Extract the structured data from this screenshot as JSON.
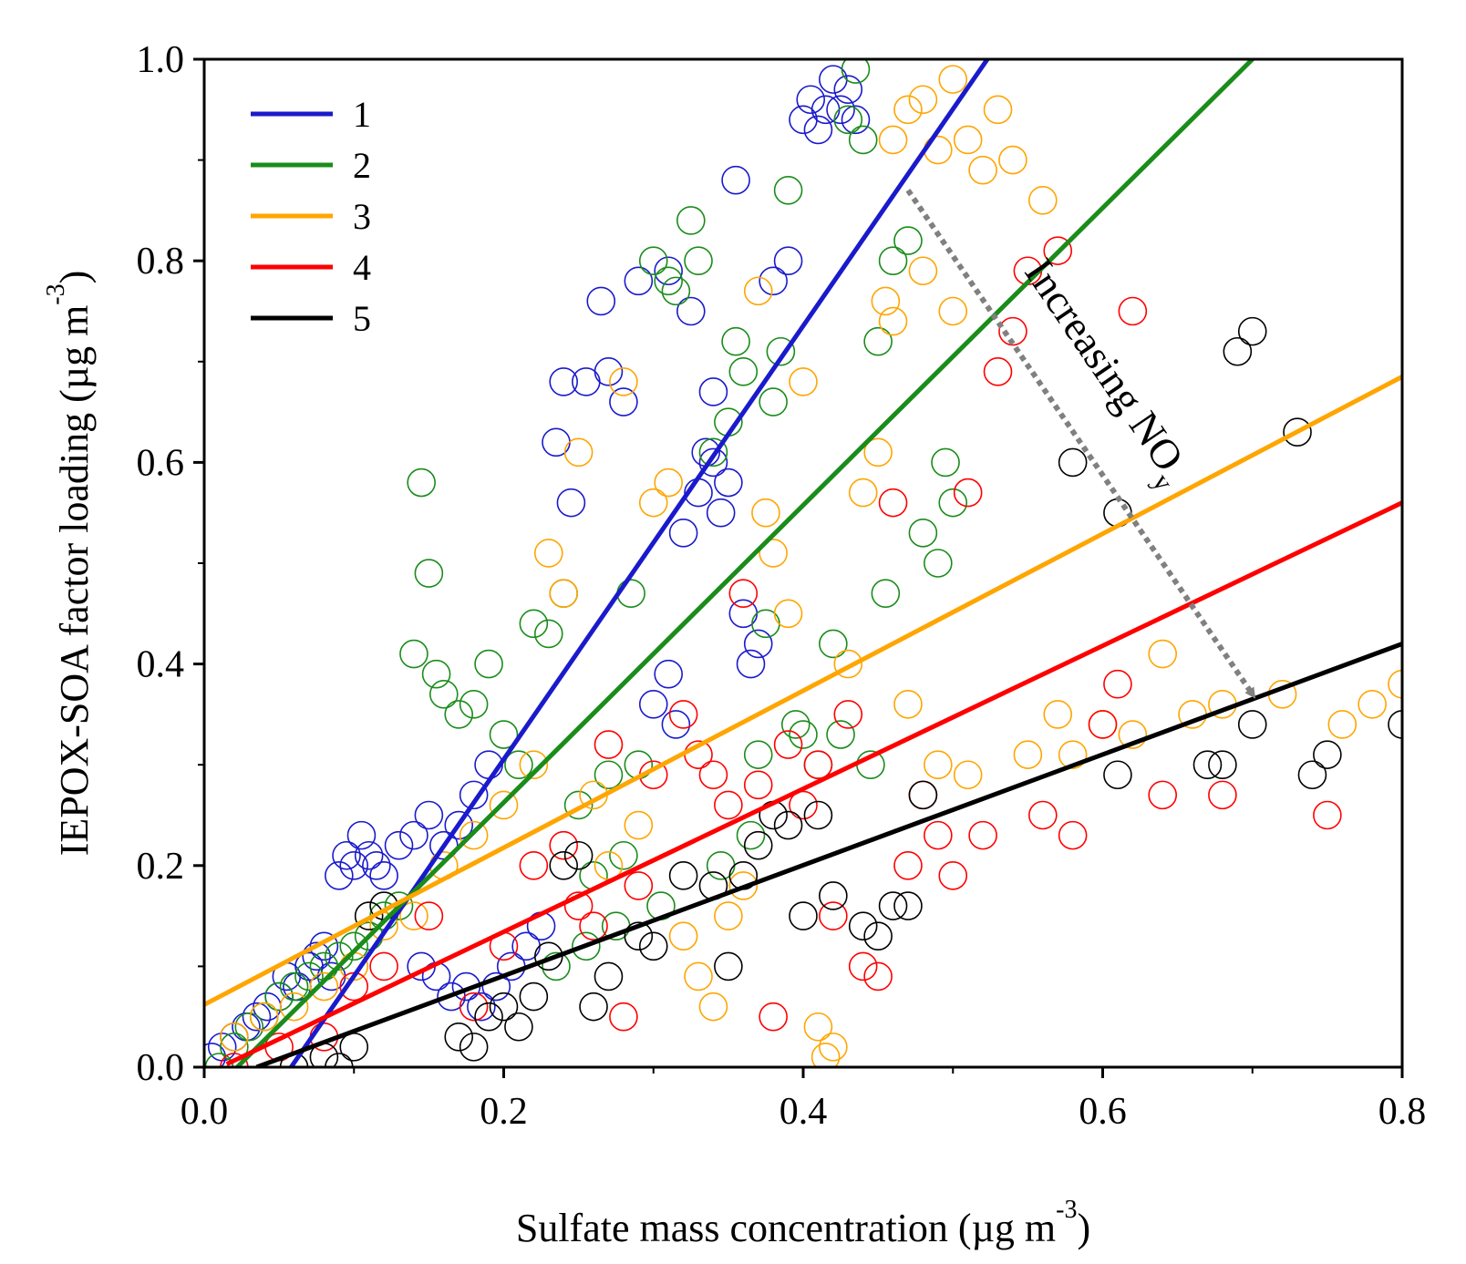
{
  "chart_data": {
    "type": "scatter",
    "xlabel": {
      "main": "Sulfate mass concentration (µg m",
      "sup": "-3",
      "close": ")"
    },
    "ylabel": {
      "main": "IEPOX-SOA factor loading (µg m",
      "sup": "-3",
      "close": ")"
    },
    "xlim": [
      0,
      0.8
    ],
    "ylim": [
      0,
      1.0
    ],
    "x_ticks": [
      "0.0",
      "0.2",
      "0.4",
      "0.6",
      "0.8"
    ],
    "y_ticks": [
      "0.0",
      "0.2",
      "0.4",
      "0.6",
      "0.8",
      "1.0"
    ],
    "grid": false,
    "legend_position": "top-left",
    "annotation": {
      "text": "Increasing NO",
      "sub": "y",
      "from": [
        0.47,
        0.87
      ],
      "to": [
        0.7,
        0.37
      ]
    },
    "series": [
      {
        "name": "1",
        "color": "#1a1acc",
        "fit_line": [
          [
            0.058,
            0.0
          ],
          [
            0.523,
            1.0
          ]
        ],
        "points": [
          [
            0.005,
            0.01
          ],
          [
            0.012,
            0.02
          ],
          [
            0.02,
            0.03
          ],
          [
            0.028,
            0.04
          ],
          [
            0.035,
            0.05
          ],
          [
            0.042,
            0.06
          ],
          [
            0.05,
            0.07
          ],
          [
            0.055,
            0.09
          ],
          [
            0.062,
            0.08
          ],
          [
            0.07,
            0.1
          ],
          [
            0.075,
            0.11
          ],
          [
            0.08,
            0.12
          ],
          [
            0.085,
            0.09
          ],
          [
            0.09,
            0.19
          ],
          [
            0.095,
            0.21
          ],
          [
            0.1,
            0.2
          ],
          [
            0.105,
            0.23
          ],
          [
            0.11,
            0.21
          ],
          [
            0.115,
            0.2
          ],
          [
            0.12,
            0.19
          ],
          [
            0.13,
            0.22
          ],
          [
            0.14,
            0.23
          ],
          [
            0.15,
            0.25
          ],
          [
            0.16,
            0.22
          ],
          [
            0.17,
            0.24
          ],
          [
            0.18,
            0.27
          ],
          [
            0.19,
            0.3
          ],
          [
            0.145,
            0.1
          ],
          [
            0.155,
            0.09
          ],
          [
            0.165,
            0.07
          ],
          [
            0.175,
            0.08
          ],
          [
            0.185,
            0.06
          ],
          [
            0.195,
            0.08
          ],
          [
            0.205,
            0.1
          ],
          [
            0.215,
            0.12
          ],
          [
            0.225,
            0.14
          ],
          [
            0.235,
            0.62
          ],
          [
            0.24,
            0.68
          ],
          [
            0.245,
            0.56
          ],
          [
            0.255,
            0.68
          ],
          [
            0.265,
            0.76
          ],
          [
            0.27,
            0.69
          ],
          [
            0.28,
            0.66
          ],
          [
            0.29,
            0.78
          ],
          [
            0.3,
            0.36
          ],
          [
            0.31,
            0.39
          ],
          [
            0.315,
            0.34
          ],
          [
            0.32,
            0.53
          ],
          [
            0.33,
            0.57
          ],
          [
            0.335,
            0.61
          ],
          [
            0.34,
            0.6
          ],
          [
            0.345,
            0.55
          ],
          [
            0.35,
            0.58
          ],
          [
            0.355,
            0.88
          ],
          [
            0.36,
            0.45
          ],
          [
            0.365,
            0.4
          ],
          [
            0.37,
            0.42
          ],
          [
            0.38,
            0.78
          ],
          [
            0.39,
            0.8
          ],
          [
            0.4,
            0.94
          ],
          [
            0.405,
            0.96
          ],
          [
            0.41,
            0.93
          ],
          [
            0.415,
            0.95
          ],
          [
            0.42,
            0.98
          ],
          [
            0.425,
            0.95
          ],
          [
            0.43,
            0.97
          ],
          [
            0.435,
            0.94
          ],
          [
            0.34,
            0.67
          ],
          [
            0.325,
            0.75
          ],
          [
            0.31,
            0.79
          ]
        ]
      },
      {
        "name": "2",
        "color": "#1a8c1a",
        "fit_line": [
          [
            0.022,
            0.0
          ],
          [
            0.7,
            1.0
          ]
        ],
        "points": [
          [
            0.01,
            0.0
          ],
          [
            0.02,
            0.02
          ],
          [
            0.03,
            0.04
          ],
          [
            0.04,
            0.05
          ],
          [
            0.05,
            0.07
          ],
          [
            0.06,
            0.08
          ],
          [
            0.07,
            0.09
          ],
          [
            0.08,
            0.1
          ],
          [
            0.09,
            0.11
          ],
          [
            0.1,
            0.12
          ],
          [
            0.11,
            0.13
          ],
          [
            0.12,
            0.15
          ],
          [
            0.13,
            0.16
          ],
          [
            0.14,
            0.41
          ],
          [
            0.145,
            0.58
          ],
          [
            0.15,
            0.49
          ],
          [
            0.155,
            0.39
          ],
          [
            0.16,
            0.37
          ],
          [
            0.17,
            0.35
          ],
          [
            0.18,
            0.36
          ],
          [
            0.19,
            0.4
          ],
          [
            0.2,
            0.33
          ],
          [
            0.21,
            0.3
          ],
          [
            0.22,
            0.44
          ],
          [
            0.23,
            0.43
          ],
          [
            0.24,
            0.47
          ],
          [
            0.25,
            0.26
          ],
          [
            0.26,
            0.19
          ],
          [
            0.27,
            0.29
          ],
          [
            0.28,
            0.21
          ],
          [
            0.285,
            0.47
          ],
          [
            0.29,
            0.3
          ],
          [
            0.3,
            0.8
          ],
          [
            0.31,
            0.78
          ],
          [
            0.315,
            0.77
          ],
          [
            0.325,
            0.84
          ],
          [
            0.33,
            0.8
          ],
          [
            0.34,
            0.61
          ],
          [
            0.35,
            0.64
          ],
          [
            0.355,
            0.72
          ],
          [
            0.36,
            0.69
          ],
          [
            0.37,
            0.31
          ],
          [
            0.375,
            0.44
          ],
          [
            0.38,
            0.66
          ],
          [
            0.385,
            0.71
          ],
          [
            0.39,
            0.87
          ],
          [
            0.4,
            0.33
          ],
          [
            0.41,
            0.3
          ],
          [
            0.42,
            0.42
          ],
          [
            0.43,
            0.94
          ],
          [
            0.435,
            0.99
          ],
          [
            0.44,
            0.92
          ],
          [
            0.45,
            0.72
          ],
          [
            0.46,
            0.8
          ],
          [
            0.47,
            0.82
          ],
          [
            0.48,
            0.53
          ],
          [
            0.49,
            0.5
          ],
          [
            0.495,
            0.6
          ],
          [
            0.5,
            0.56
          ],
          [
            0.455,
            0.47
          ],
          [
            0.445,
            0.3
          ],
          [
            0.425,
            0.33
          ],
          [
            0.395,
            0.34
          ],
          [
            0.365,
            0.23
          ],
          [
            0.345,
            0.2
          ],
          [
            0.305,
            0.16
          ],
          [
            0.275,
            0.14
          ],
          [
            0.255,
            0.12
          ],
          [
            0.235,
            0.1
          ]
        ]
      },
      {
        "name": "3",
        "color": "#ffa500",
        "fit_line": [
          [
            0.0,
            0.062
          ],
          [
            0.8,
            0.685
          ]
        ],
        "points": [
          [
            0.02,
            0.03
          ],
          [
            0.04,
            0.05
          ],
          [
            0.06,
            0.06
          ],
          [
            0.08,
            0.08
          ],
          [
            0.1,
            0.1
          ],
          [
            0.12,
            0.14
          ],
          [
            0.14,
            0.15
          ],
          [
            0.16,
            0.2
          ],
          [
            0.18,
            0.23
          ],
          [
            0.2,
            0.26
          ],
          [
            0.22,
            0.3
          ],
          [
            0.23,
            0.51
          ],
          [
            0.24,
            0.47
          ],
          [
            0.25,
            0.61
          ],
          [
            0.26,
            0.27
          ],
          [
            0.27,
            0.2
          ],
          [
            0.28,
            0.68
          ],
          [
            0.29,
            0.24
          ],
          [
            0.3,
            0.56
          ],
          [
            0.31,
            0.58
          ],
          [
            0.32,
            0.13
          ],
          [
            0.33,
            0.09
          ],
          [
            0.34,
            0.06
          ],
          [
            0.35,
            0.15
          ],
          [
            0.36,
            0.18
          ],
          [
            0.37,
            0.77
          ],
          [
            0.375,
            0.55
          ],
          [
            0.38,
            0.51
          ],
          [
            0.39,
            0.45
          ],
          [
            0.4,
            0.68
          ],
          [
            0.41,
            0.04
          ],
          [
            0.415,
            0.01
          ],
          [
            0.42,
            0.02
          ],
          [
            0.43,
            0.4
          ],
          [
            0.44,
            0.57
          ],
          [
            0.45,
            0.61
          ],
          [
            0.455,
            0.76
          ],
          [
            0.46,
            0.92
          ],
          [
            0.47,
            0.95
          ],
          [
            0.48,
            0.96
          ],
          [
            0.49,
            0.91
          ],
          [
            0.5,
            0.98
          ],
          [
            0.51,
            0.92
          ],
          [
            0.52,
            0.89
          ],
          [
            0.53,
            0.95
          ],
          [
            0.54,
            0.9
          ],
          [
            0.55,
            0.31
          ],
          [
            0.56,
            0.86
          ],
          [
            0.57,
            0.35
          ],
          [
            0.58,
            0.31
          ],
          [
            0.6,
            0.34
          ],
          [
            0.62,
            0.33
          ],
          [
            0.64,
            0.41
          ],
          [
            0.66,
            0.35
          ],
          [
            0.68,
            0.36
          ],
          [
            0.72,
            0.37
          ],
          [
            0.76,
            0.34
          ],
          [
            0.78,
            0.36
          ],
          [
            0.8,
            0.38
          ],
          [
            0.46,
            0.74
          ],
          [
            0.48,
            0.79
          ],
          [
            0.5,
            0.75
          ],
          [
            0.47,
            0.36
          ],
          [
            0.49,
            0.3
          ],
          [
            0.51,
            0.29
          ]
        ]
      },
      {
        "name": "4",
        "color": "#ff0000",
        "fit_line": [
          [
            0.015,
            0.003
          ],
          [
            0.8,
            0.56
          ]
        ],
        "points": [
          [
            0.02,
            0.0
          ],
          [
            0.05,
            0.02
          ],
          [
            0.08,
            0.03
          ],
          [
            0.1,
            0.08
          ],
          [
            0.12,
            0.1
          ],
          [
            0.15,
            0.15
          ],
          [
            0.18,
            0.06
          ],
          [
            0.2,
            0.12
          ],
          [
            0.22,
            0.2
          ],
          [
            0.24,
            0.22
          ],
          [
            0.25,
            0.16
          ],
          [
            0.27,
            0.32
          ],
          [
            0.28,
            0.05
          ],
          [
            0.3,
            0.29
          ],
          [
            0.32,
            0.35
          ],
          [
            0.34,
            0.29
          ],
          [
            0.35,
            0.26
          ],
          [
            0.36,
            0.47
          ],
          [
            0.38,
            0.05
          ],
          [
            0.4,
            0.26
          ],
          [
            0.42,
            0.15
          ],
          [
            0.44,
            0.1
          ],
          [
            0.45,
            0.09
          ],
          [
            0.46,
            0.56
          ],
          [
            0.47,
            0.2
          ],
          [
            0.48,
            0.27
          ],
          [
            0.49,
            0.23
          ],
          [
            0.5,
            0.19
          ],
          [
            0.51,
            0.57
          ],
          [
            0.52,
            0.23
          ],
          [
            0.53,
            0.69
          ],
          [
            0.54,
            0.73
          ],
          [
            0.55,
            0.79
          ],
          [
            0.56,
            0.25
          ],
          [
            0.57,
            0.81
          ],
          [
            0.58,
            0.23
          ],
          [
            0.6,
            0.34
          ],
          [
            0.61,
            0.38
          ],
          [
            0.62,
            0.75
          ],
          [
            0.64,
            0.27
          ],
          [
            0.68,
            0.27
          ],
          [
            0.75,
            0.25
          ],
          [
            0.43,
            0.35
          ],
          [
            0.41,
            0.3
          ],
          [
            0.39,
            0.32
          ],
          [
            0.37,
            0.28
          ],
          [
            0.33,
            0.31
          ],
          [
            0.29,
            0.18
          ],
          [
            0.26,
            0.14
          ]
        ]
      },
      {
        "name": "5",
        "color": "#000000",
        "fit_line": [
          [
            0.035,
            0.0
          ],
          [
            0.8,
            0.42
          ]
        ],
        "points": [
          [
            0.06,
            0.0
          ],
          [
            0.08,
            0.01
          ],
          [
            0.09,
            0.0
          ],
          [
            0.1,
            0.02
          ],
          [
            0.11,
            0.15
          ],
          [
            0.12,
            0.16
          ],
          [
            0.17,
            0.03
          ],
          [
            0.18,
            0.02
          ],
          [
            0.19,
            0.05
          ],
          [
            0.2,
            0.06
          ],
          [
            0.21,
            0.04
          ],
          [
            0.22,
            0.07
          ],
          [
            0.23,
            0.11
          ],
          [
            0.24,
            0.2
          ],
          [
            0.25,
            0.21
          ],
          [
            0.26,
            0.06
          ],
          [
            0.27,
            0.09
          ],
          [
            0.29,
            0.13
          ],
          [
            0.3,
            0.12
          ],
          [
            0.32,
            0.19
          ],
          [
            0.34,
            0.18
          ],
          [
            0.35,
            0.1
          ],
          [
            0.36,
            0.19
          ],
          [
            0.37,
            0.22
          ],
          [
            0.38,
            0.25
          ],
          [
            0.39,
            0.24
          ],
          [
            0.4,
            0.15
          ],
          [
            0.41,
            0.25
          ],
          [
            0.42,
            0.17
          ],
          [
            0.44,
            0.14
          ],
          [
            0.45,
            0.13
          ],
          [
            0.46,
            0.16
          ],
          [
            0.47,
            0.16
          ],
          [
            0.48,
            0.27
          ],
          [
            0.58,
            0.6
          ],
          [
            0.61,
            0.55
          ],
          [
            0.61,
            0.29
          ],
          [
            0.67,
            0.3
          ],
          [
            0.68,
            0.3
          ],
          [
            0.69,
            0.71
          ],
          [
            0.7,
            0.73
          ],
          [
            0.7,
            0.34
          ],
          [
            0.73,
            0.63
          ],
          [
            0.74,
            0.29
          ],
          [
            0.75,
            0.31
          ],
          [
            0.8,
            0.34
          ]
        ]
      }
    ]
  }
}
